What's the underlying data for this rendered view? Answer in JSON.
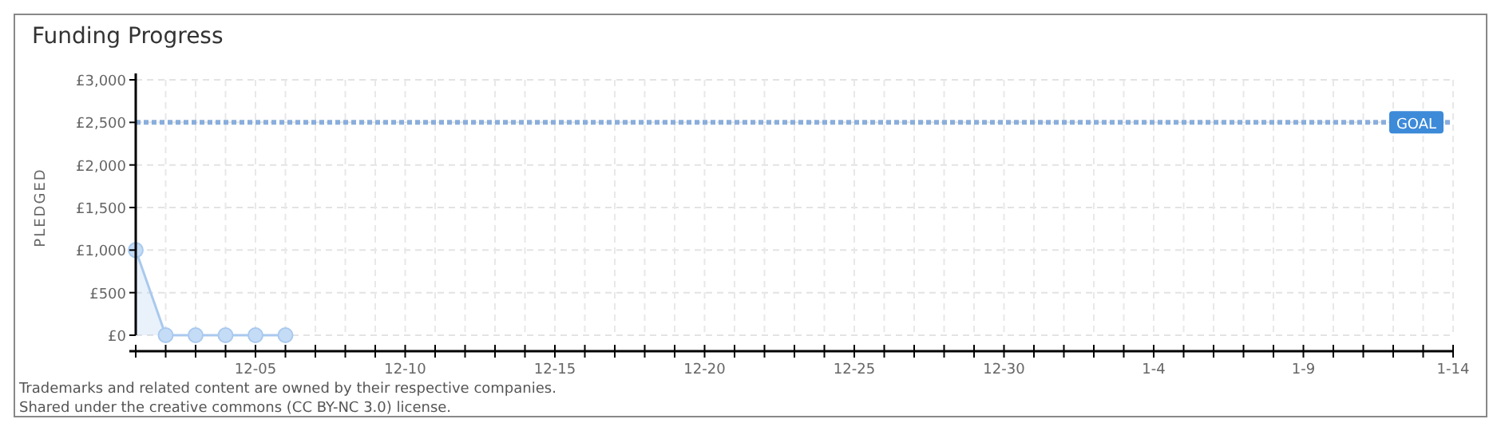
{
  "chart_data": {
    "type": "area",
    "title": "Funding Progress",
    "ylabel": "PLEDGED",
    "categories": [
      null,
      null,
      null,
      null,
      "12-05",
      null,
      null,
      null,
      null,
      "12-10",
      null,
      null,
      null,
      null,
      "12-15",
      null,
      null,
      null,
      null,
      "12-20",
      null,
      null,
      null,
      null,
      "12-25",
      null,
      null,
      null,
      null,
      "12-30",
      null,
      null,
      null,
      null,
      "1-4",
      null,
      null,
      null,
      null,
      "1-9",
      null,
      null,
      null,
      null,
      "1-14"
    ],
    "series": [
      {
        "color": "#a9c9ee",
        "values": [
          1000,
          0,
          0,
          0,
          0,
          0,
          null,
          null,
          null,
          null,
          null,
          null,
          null,
          null,
          null,
          null,
          null,
          null,
          null,
          null,
          null,
          null,
          null,
          null,
          null,
          null,
          null,
          null,
          null,
          null,
          null,
          null,
          null,
          null,
          null,
          null,
          null,
          null,
          null,
          null,
          null,
          null,
          null,
          null,
          null
        ]
      }
    ],
    "marker": "circle",
    "grid": true,
    "ylim": [
      0,
      3000
    ],
    "yticks": [
      {
        "value": 0,
        "label": "£0"
      },
      {
        "value": 500,
        "label": "£500"
      },
      {
        "value": 1000,
        "label": "£1,000"
      },
      {
        "value": 1500,
        "label": "£1,500"
      },
      {
        "value": 2000,
        "label": "£2,000"
      },
      {
        "value": 2500,
        "label": "£2,500"
      },
      {
        "value": 3000,
        "label": "£3,000"
      }
    ],
    "ref_lines": [
      {
        "axis": "y",
        "value": 2500,
        "label": "GOAL",
        "color": "#8aaedc",
        "line_style": "dotted"
      }
    ],
    "annotations": [
      "Trademarks and related content are owned by their respective companies.",
      "Shared under the creative commons (CC BY-NC 3.0) license."
    ]
  }
}
